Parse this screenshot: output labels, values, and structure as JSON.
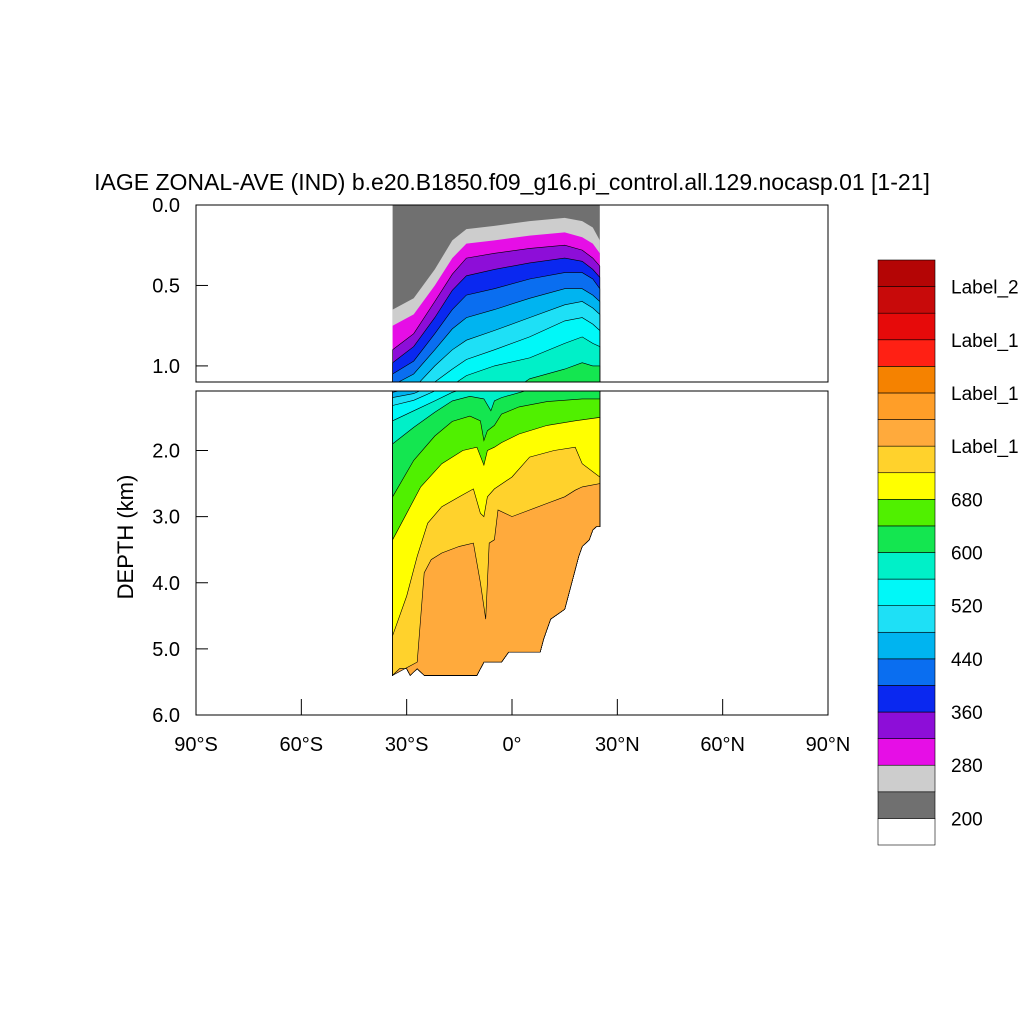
{
  "chart_data": {
    "type": "heatmap",
    "title": "IAGE ZONAL-AVE (IND) b.e20.B1850.f09_g16.pi_control.all.129.nocasp.01 [1-21]",
    "ylabel": "DEPTH (km)",
    "xlabel": "",
    "xlim": [
      -90,
      90
    ],
    "x_ticks": [
      -90,
      -60,
      -30,
      0,
      30,
      60,
      90
    ],
    "x_tick_labels": [
      "90°S",
      "60°S",
      "30°S",
      "0°",
      "30°N",
      "60°N",
      "90°N"
    ],
    "upper_panel": {
      "ylim": [
        0.0,
        1.1
      ],
      "y_ticks": [
        0.0,
        0.5,
        1.0
      ],
      "y_tick_labels": [
        "0.0",
        "0.5",
        "1.0"
      ]
    },
    "lower_panel": {
      "ylim": [
        1.1,
        6.0
      ],
      "y_ticks": [
        2.0,
        3.0,
        4.0,
        5.0,
        6.0
      ],
      "y_tick_labels": [
        "2.0",
        "3.0",
        "4.0",
        "5.0",
        "6.0"
      ]
    },
    "data_extent": {
      "lat_min": -34,
      "lat_max": 25
    },
    "colorbar": {
      "colors": [
        "#ffffff",
        "#707070",
        "#cdcdcd",
        "#e60ee6",
        "#8d0ed8",
        "#0a28f0",
        "#0a6ef0",
        "#00b4f0",
        "#1ee0f6",
        "#00f8f8",
        "#00f0c8",
        "#14e650",
        "#50f000",
        "#ffff00",
        "#ffd22c",
        "#ffaa3c",
        "#ff9e28",
        "#f58200",
        "#ff2014",
        "#e60a0a",
        "#c80a0a",
        "#b40505"
      ],
      "labels": [
        "200",
        "280",
        "360",
        "440",
        "520",
        "600",
        "680",
        "Label_1",
        "Label_1",
        "Label_1",
        "Label_2"
      ]
    },
    "contours": [
      {
        "level": "200",
        "color": "#707070",
        "surface": [
          [
            -34,
            0.0
          ],
          [
            25,
            0.0
          ]
        ]
      },
      {
        "level": "240",
        "color": "#cdcdcd",
        "surface": [
          [
            -34,
            0.65
          ],
          [
            -28,
            0.58
          ],
          [
            -22,
            0.4
          ],
          [
            -17,
            0.22
          ],
          [
            -13,
            0.15
          ],
          [
            -5,
            0.13
          ],
          [
            5,
            0.1
          ],
          [
            15,
            0.08
          ],
          [
            20,
            0.1
          ],
          [
            23,
            0.14
          ],
          [
            25,
            0.22
          ]
        ]
      },
      {
        "level": "280",
        "color": "#e60ee6",
        "surface": [
          [
            -34,
            0.75
          ],
          [
            -28,
            0.68
          ],
          [
            -22,
            0.5
          ],
          [
            -17,
            0.33
          ],
          [
            -13,
            0.24
          ],
          [
            -5,
            0.22
          ],
          [
            5,
            0.19
          ],
          [
            15,
            0.17
          ],
          [
            20,
            0.2
          ],
          [
            23,
            0.24
          ],
          [
            25,
            0.3
          ]
        ]
      },
      {
        "level": "320",
        "color": "#8d0ed8",
        "surface": [
          [
            -34,
            0.9
          ],
          [
            -28,
            0.8
          ],
          [
            -22,
            0.6
          ],
          [
            -17,
            0.43
          ],
          [
            -13,
            0.33
          ],
          [
            -5,
            0.3
          ],
          [
            5,
            0.27
          ],
          [
            15,
            0.25
          ],
          [
            20,
            0.28
          ],
          [
            23,
            0.33
          ],
          [
            25,
            0.38
          ]
        ]
      },
      {
        "level": "360",
        "color": "#0a28f0",
        "surface": [
          [
            -34,
            0.98
          ],
          [
            -28,
            0.88
          ],
          [
            -22,
            0.7
          ],
          [
            -17,
            0.53
          ],
          [
            -13,
            0.44
          ],
          [
            -5,
            0.4
          ],
          [
            5,
            0.36
          ],
          [
            15,
            0.33
          ],
          [
            20,
            0.35
          ],
          [
            23,
            0.4
          ],
          [
            25,
            0.45
          ]
        ]
      },
      {
        "level": "400",
        "color": "#0a6ef0",
        "surface": [
          [
            -34,
            1.05
          ],
          [
            -28,
            0.97
          ],
          [
            -22,
            0.8
          ],
          [
            -17,
            0.65
          ],
          [
            -13,
            0.56
          ],
          [
            -5,
            0.52
          ],
          [
            5,
            0.46
          ],
          [
            15,
            0.42
          ],
          [
            20,
            0.42
          ],
          [
            23,
            0.46
          ],
          [
            25,
            0.52
          ]
        ]
      },
      {
        "level": "440",
        "color": "#00b4f0",
        "surface": [
          [
            -34,
            1.12
          ],
          [
            -28,
            1.05
          ],
          [
            -22,
            0.9
          ],
          [
            -17,
            0.77
          ],
          [
            -13,
            0.7
          ],
          [
            -5,
            0.65
          ],
          [
            5,
            0.58
          ],
          [
            15,
            0.52
          ],
          [
            20,
            0.52
          ],
          [
            23,
            0.56
          ],
          [
            25,
            0.6
          ]
        ]
      },
      {
        "level": "480",
        "color": "#1ee0f6",
        "surface": [
          [
            -34,
            1.2
          ],
          [
            -28,
            1.14
          ],
          [
            -22,
            1.0
          ],
          [
            -17,
            0.9
          ],
          [
            -13,
            0.84
          ],
          [
            -5,
            0.78
          ],
          [
            5,
            0.7
          ],
          [
            15,
            0.62
          ],
          [
            20,
            0.6
          ],
          [
            23,
            0.64
          ],
          [
            25,
            0.68
          ]
        ]
      },
      {
        "level": "520",
        "color": "#00f8f8",
        "surface": [
          [
            -34,
            1.32
          ],
          [
            -28,
            1.24
          ],
          [
            -22,
            1.1
          ],
          [
            -17,
            1.02
          ],
          [
            -13,
            0.96
          ],
          [
            -5,
            0.9
          ],
          [
            5,
            0.82
          ],
          [
            15,
            0.72
          ],
          [
            20,
            0.7
          ],
          [
            23,
            0.74
          ],
          [
            25,
            0.78
          ]
        ]
      },
      {
        "level": "560",
        "color": "#00f0c8",
        "surface": [
          [
            -34,
            1.55
          ],
          [
            -28,
            1.4
          ],
          [
            -22,
            1.25
          ],
          [
            -17,
            1.12
          ],
          [
            -13,
            1.06
          ],
          [
            -5,
            1.0
          ],
          [
            5,
            0.95
          ],
          [
            15,
            0.86
          ],
          [
            20,
            0.82
          ],
          [
            23,
            0.86
          ],
          [
            25,
            0.88
          ]
        ]
      },
      {
        "level": "600",
        "color": "#14e650",
        "surface": [
          [
            -34,
            1.9
          ],
          [
            -28,
            1.65
          ],
          [
            -22,
            1.42
          ],
          [
            -17,
            1.25
          ],
          [
            -12,
            1.18
          ],
          [
            -8,
            1.22
          ],
          [
            -6,
            1.4
          ],
          [
            -5,
            1.25
          ],
          [
            -3,
            1.2
          ],
          [
            5,
            1.08
          ],
          [
            15,
            1.02
          ],
          [
            20,
            0.98
          ],
          [
            23,
            1.0
          ],
          [
            25,
            1.0
          ]
        ]
      },
      {
        "level": "640",
        "color": "#50f000",
        "surface": [
          [
            -34,
            2.7
          ],
          [
            -28,
            2.15
          ],
          [
            -22,
            1.78
          ],
          [
            -17,
            1.56
          ],
          [
            -12,
            1.48
          ],
          [
            -9,
            1.55
          ],
          [
            -8,
            1.85
          ],
          [
            -7,
            1.7
          ],
          [
            -5,
            1.62
          ],
          [
            -3,
            1.45
          ],
          [
            2,
            1.34
          ],
          [
            10,
            1.26
          ],
          [
            20,
            1.22
          ],
          [
            25,
            1.22
          ]
        ]
      },
      {
        "level": "680",
        "color": "#ffff00",
        "surface": [
          [
            -34,
            3.35
          ],
          [
            -30,
            2.95
          ],
          [
            -26,
            2.55
          ],
          [
            -20,
            2.2
          ],
          [
            -14,
            2.0
          ],
          [
            -10,
            1.95
          ],
          [
            -8,
            2.22
          ],
          [
            -7,
            2.0
          ],
          [
            -5,
            1.95
          ],
          [
            -3,
            1.88
          ],
          [
            2,
            1.75
          ],
          [
            10,
            1.62
          ],
          [
            18,
            1.55
          ],
          [
            25,
            1.5
          ]
        ]
      },
      {
        "level": "720",
        "color": "#ffd22c",
        "surface": [
          [
            -34,
            4.8
          ],
          [
            -30,
            4.2
          ],
          [
            -27,
            3.6
          ],
          [
            -24,
            3.1
          ],
          [
            -20,
            2.85
          ],
          [
            -15,
            2.7
          ],
          [
            -11,
            2.58
          ],
          [
            -9,
            2.95
          ],
          [
            -8,
            3.0
          ],
          [
            -7,
            2.7
          ],
          [
            -5,
            2.58
          ],
          [
            0,
            2.4
          ],
          [
            5,
            2.1
          ],
          [
            12,
            2.0
          ],
          [
            18,
            1.95
          ],
          [
            20,
            2.2
          ],
          [
            25,
            2.4
          ]
        ]
      },
      {
        "level": "760",
        "color": "#ffaa3c",
        "surface": [
          [
            -34,
            5.4
          ],
          [
            -27,
            5.2
          ],
          [
            -25,
            3.85
          ],
          [
            -23,
            3.65
          ],
          [
            -20,
            3.55
          ],
          [
            -15,
            3.45
          ],
          [
            -11,
            3.4
          ],
          [
            -9,
            4.0
          ],
          [
            -7.5,
            4.55
          ],
          [
            -6.5,
            3.4
          ],
          [
            -5,
            3.35
          ],
          [
            -4,
            2.9
          ],
          [
            0,
            3.0
          ],
          [
            5,
            2.9
          ],
          [
            10,
            2.8
          ],
          [
            15,
            2.7
          ],
          [
            18,
            2.6
          ],
          [
            20,
            2.55
          ],
          [
            25,
            2.5
          ]
        ]
      }
    ],
    "bottom_profile": [
      [
        -34,
        5.4
      ],
      [
        -32,
        5.3
      ],
      [
        -30,
        5.3
      ],
      [
        -29,
        5.4
      ],
      [
        -27,
        5.3
      ],
      [
        -25,
        5.4
      ],
      [
        -10,
        5.4
      ],
      [
        -8,
        5.2
      ],
      [
        -3,
        5.2
      ],
      [
        -1,
        5.05
      ],
      [
        8,
        5.05
      ],
      [
        9,
        4.85
      ],
      [
        10,
        4.7
      ],
      [
        11,
        4.55
      ],
      [
        15,
        4.4
      ],
      [
        16,
        4.2
      ],
      [
        17,
        4.0
      ],
      [
        18,
        3.8
      ],
      [
        19,
        3.6
      ],
      [
        20,
        3.45
      ],
      [
        22,
        3.35
      ],
      [
        23,
        3.2
      ],
      [
        24,
        3.15
      ],
      [
        25,
        3.15
      ]
    ]
  }
}
